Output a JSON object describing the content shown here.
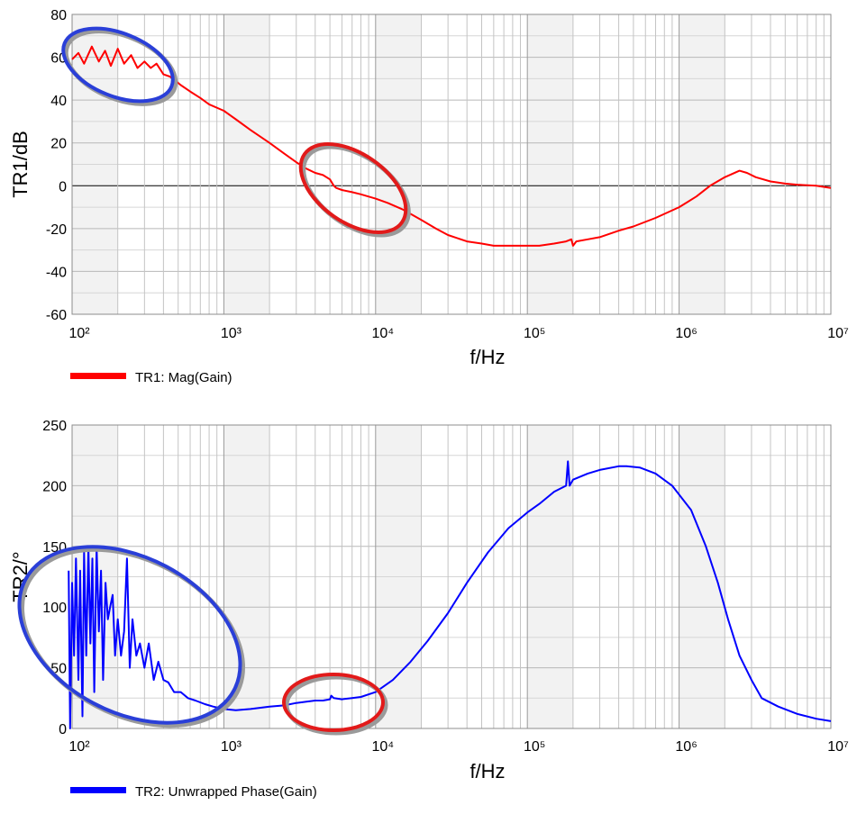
{
  "chart_data": [
    {
      "type": "line",
      "xscale": "log",
      "xlim": [
        100,
        10000000
      ],
      "ylim": [
        -60,
        80
      ],
      "yticks": [
        -60,
        -40,
        -20,
        0,
        20,
        40,
        60,
        80
      ],
      "ytick_labels": [
        "-60",
        "-40",
        "-20",
        "0",
        "20",
        "40",
        "60",
        "80"
      ],
      "xtick_labels": [
        "10²",
        "10³",
        "10⁴",
        "10⁵",
        "10⁶",
        "10⁷"
      ],
      "xlabel": "f/Hz",
      "ylabel": "TR1/dB",
      "grid": true,
      "legend_position": "bottom-left",
      "color": "#ff0000",
      "series": [
        {
          "name": "TR1: Mag(Gain)",
          "x": [
            100,
            110,
            120,
            135,
            150,
            165,
            180,
            200,
            220,
            245,
            270,
            300,
            330,
            360,
            400,
            440,
            480,
            520,
            600,
            700,
            800,
            1000,
            1200,
            1500,
            2000,
            2500,
            3000,
            3500,
            4000,
            4500,
            5000,
            5300,
            5500,
            6000,
            7000,
            8000,
            10000,
            12000,
            15000,
            20000,
            25000,
            30000,
            40000,
            50000,
            60000,
            80000,
            100000,
            120000,
            150000,
            180000,
            195000,
            200000,
            210000,
            250000,
            300000,
            400000,
            500000,
            700000,
            1000000,
            1300000,
            1600000,
            2000000,
            2500000,
            2800000,
            3200000,
            4000000,
            5000000,
            6000000,
            8000000,
            10000000
          ],
          "y": [
            59,
            62,
            57,
            65,
            58,
            63,
            56,
            64,
            57,
            61,
            55,
            58,
            55,
            57,
            52,
            51,
            49,
            47,
            44,
            41,
            38,
            35,
            31,
            26,
            20,
            15,
            11,
            8,
            6,
            5,
            3,
            0,
            -1,
            -2,
            -3,
            -4,
            -6,
            -8,
            -11,
            -16,
            -20,
            -23,
            -26,
            -27,
            -28,
            -28,
            -28,
            -28,
            -27,
            -26,
            -25,
            -28,
            -26,
            -25,
            -24,
            -21,
            -19,
            -15,
            -10,
            -5,
            0,
            4,
            7,
            6,
            4,
            2,
            1,
            0.5,
            0,
            -1
          ]
        }
      ]
    },
    {
      "type": "line",
      "xscale": "log",
      "xlim": [
        100,
        10000000
      ],
      "ylim": [
        0,
        250
      ],
      "yticks": [
        0,
        50,
        100,
        150,
        200,
        250
      ],
      "ytick_labels": [
        "0",
        "50",
        "100",
        "150",
        "200",
        "250"
      ],
      "xtick_labels": [
        "10²",
        "10³",
        "10⁴",
        "10⁵",
        "10⁶",
        "10⁷"
      ],
      "xlabel": "f/Hz",
      "ylabel": "TR2/°",
      "grid": true,
      "legend_position": "bottom-left",
      "color": "#0000ff",
      "series": [
        {
          "name": "TR2: Unwrapped Phase(Gain)",
          "x": [
            95,
            97,
            100,
            103,
            106,
            110,
            113,
            117,
            120,
            124,
            128,
            132,
            136,
            140,
            145,
            150,
            155,
            160,
            166,
            172,
            178,
            185,
            192,
            200,
            210,
            220,
            230,
            240,
            250,
            265,
            280,
            300,
            320,
            345,
            370,
            400,
            430,
            470,
            520,
            580,
            650,
            750,
            850,
            1000,
            1200,
            1500,
            2000,
            2500,
            3000,
            3500,
            4000,
            4500,
            5000,
            5100,
            5300,
            6000,
            7000,
            8000,
            10000,
            13000,
            17000,
            22000,
            30000,
            40000,
            55000,
            75000,
            100000,
            120000,
            150000,
            180000,
            185000,
            190000,
            200000,
            250000,
            300000,
            400000,
            450000,
            550000,
            700000,
            900000,
            1200000,
            1500000,
            1800000,
            2100000,
            2500000,
            3000000,
            3500000,
            4500000,
            6000000,
            8000000,
            10000000
          ],
          "y": [
            130,
            0,
            120,
            60,
            140,
            40,
            130,
            10,
            145,
            60,
            150,
            70,
            140,
            30,
            150,
            80,
            130,
            40,
            120,
            90,
            100,
            110,
            60,
            90,
            60,
            80,
            140,
            50,
            90,
            60,
            70,
            50,
            70,
            40,
            55,
            40,
            38,
            30,
            30,
            25,
            23,
            20,
            18,
            16,
            15,
            16,
            18,
            19,
            21,
            22,
            23,
            23,
            24,
            27,
            25,
            24,
            25,
            26,
            30,
            40,
            55,
            72,
            95,
            120,
            145,
            165,
            178,
            185,
            195,
            200,
            220,
            200,
            205,
            210,
            213,
            216,
            216,
            215,
            210,
            200,
            180,
            150,
            120,
            90,
            60,
            40,
            25,
            18,
            12,
            8,
            6
          ]
        }
      ]
    }
  ]
}
